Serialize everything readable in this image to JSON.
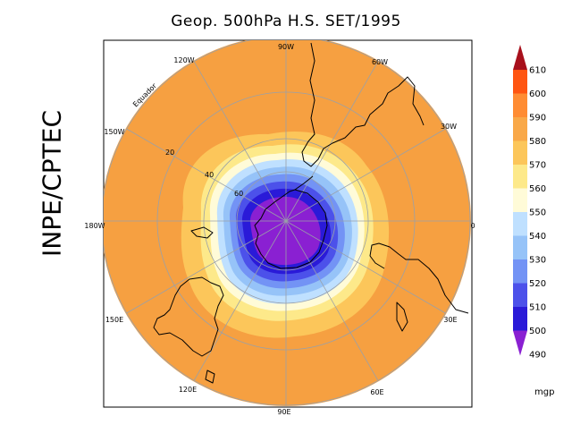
{
  "title": "Geop. 500hPa H.S. SET/1995",
  "institution": "INPE/CPTEC",
  "map": {
    "projection": "polar stereographic, south pole",
    "longitude_labels": [
      "90W",
      "60W",
      "30W",
      "0",
      "30E",
      "60E",
      "90E",
      "120E",
      "150E",
      "180W",
      "150W",
      "120W"
    ],
    "latitude_labels": [
      "20",
      "40",
      "60"
    ],
    "equator_label": "Equador"
  },
  "colorbar": {
    "unit": "mgp",
    "levels": [
      "610",
      "600",
      "590",
      "580",
      "570",
      "560",
      "550",
      "540",
      "530",
      "520",
      "510",
      "500",
      "490"
    ],
    "colors": [
      "#e8142a",
      "#ff5511",
      "#ff8c33",
      "#f9a848",
      "#fcc65a",
      "#fde98a",
      "#fffbd8",
      "#bfe0ff",
      "#96c3f8",
      "#7393f5",
      "#4c51ea",
      "#2a1ad8",
      "#8a20d2"
    ]
  },
  "colors": {
    "map_fill": "#f6a041",
    "lat_lines": "#9aa0a8",
    "frame": "#000000"
  }
}
